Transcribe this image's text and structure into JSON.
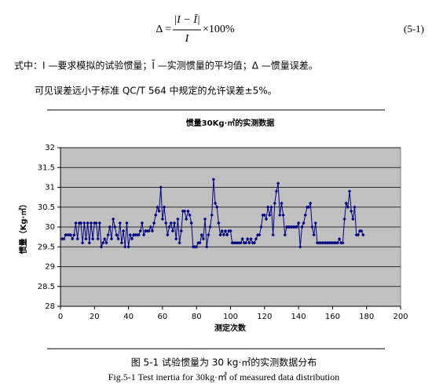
{
  "formula": {
    "lhs": "Δ =",
    "numerator": "|I − Ī|",
    "denominator": "I",
    "factor": "×100%",
    "number": "(5-1)"
  },
  "paragraphs": [
    "式中：I —要求模拟的试验惯量；Ī —实测惯量的平均值；Δ —惯量误差。",
    "可见误差远小于标准 QC/T 564 中规定的允许误差±5%。"
  ],
  "chart_data": {
    "type": "line",
    "title": "惯量30Kg·㎡的实测数据",
    "x_label": "测定次数",
    "y_label": "惯量（Kg·㎡）",
    "color": "#000080",
    "background": "#c0c0c0",
    "grid": true,
    "xlim": [
      0,
      200
    ],
    "xticks": [
      0,
      20,
      40,
      60,
      80,
      100,
      120,
      140,
      160,
      180,
      200
    ],
    "ylim": [
      28,
      32
    ],
    "yticks": [
      28,
      28.5,
      29,
      29.5,
      30,
      30.5,
      31,
      31.5,
      32
    ],
    "x": [
      1,
      2,
      3,
      4,
      5,
      6,
      7,
      8,
      9,
      10,
      11,
      12,
      13,
      14,
      15,
      16,
      17,
      18,
      19,
      20,
      21,
      22,
      23,
      24,
      25,
      26,
      27,
      28,
      29,
      30,
      31,
      32,
      33,
      34,
      35,
      36,
      37,
      38,
      39,
      40,
      41,
      42,
      43,
      44,
      45,
      46,
      47,
      48,
      49,
      50,
      51,
      52,
      53,
      54,
      55,
      56,
      57,
      58,
      59,
      60,
      61,
      62,
      63,
      64,
      65,
      66,
      67,
      68,
      69,
      70,
      71,
      72,
      73,
      74,
      75,
      76,
      77,
      78,
      79,
      80,
      81,
      82,
      83,
      84,
      85,
      86,
      87,
      88,
      89,
      90,
      91,
      92,
      93,
      94,
      95,
      96,
      97,
      98,
      99,
      100,
      101,
      102,
      103,
      104,
      105,
      106,
      107,
      108,
      109,
      110,
      111,
      112,
      113,
      114,
      115,
      116,
      117,
      118,
      119,
      120,
      121,
      122,
      123,
      124,
      125,
      126,
      127,
      128,
      129,
      130,
      131,
      132,
      133,
      134,
      135,
      136,
      137,
      138,
      139,
      140,
      141,
      142,
      143,
      144,
      145,
      146,
      147,
      148,
      149,
      150,
      151,
      152,
      153,
      154,
      155,
      156,
      157,
      158,
      159,
      160,
      161,
      162,
      163,
      164,
      165,
      166,
      167,
      168,
      169,
      170,
      171,
      172,
      173,
      174,
      175,
      176,
      177,
      178
    ],
    "values": [
      29.7,
      29.7,
      29.8,
      29.8,
      29.8,
      29.8,
      29.7,
      29.8,
      30.1,
      29.7,
      30.1,
      30.1,
      29.6,
      30.1,
      29.7,
      30.1,
      29.6,
      30.1,
      29.7,
      30.1,
      30.1,
      29.7,
      30.1,
      29.5,
      29.6,
      29.7,
      29.6,
      29.8,
      30.0,
      29.7,
      30.2,
      30.0,
      29.8,
      29.7,
      30.1,
      29.6,
      29.9,
      29.5,
      30.1,
      29.5,
      29.8,
      29.7,
      29.8,
      29.8,
      29.8,
      29.8,
      29.9,
      30.1,
      29.8,
      29.9,
      29.9,
      29.9,
      30.0,
      29.9,
      30.1,
      30.3,
      30.5,
      30.4,
      31.0,
      30.2,
      30.5,
      30.1,
      29.8,
      30.0,
      30.1,
      29.9,
      30.1,
      29.7,
      30.2,
      29.6,
      29.9,
      30.4,
      30.4,
      30.2,
      30.4,
      30.3,
      30.1,
      29.5,
      29.5,
      29.5,
      29.6,
      29.6,
      29.8,
      29.7,
      30.2,
      29.5,
      29.8,
      30.0,
      30.3,
      31.2,
      30.6,
      30.5,
      30.1,
      29.8,
      29.9,
      29.8,
      29.9,
      29.8,
      29.9,
      29.9,
      29.6,
      29.6,
      29.6,
      29.6,
      29.6,
      29.6,
      29.7,
      29.6,
      29.6,
      29.7,
      29.6,
      29.7,
      29.6,
      29.6,
      29.7,
      29.8,
      29.8,
      30.0,
      30.3,
      30.3,
      30.2,
      30.5,
      30.3,
      30.5,
      29.8,
      30.6,
      30.9,
      31.1,
      30.3,
      30.6,
      30.3,
      29.8,
      30.0,
      30.0,
      30.0,
      30.0,
      30.0,
      30.0,
      30.0,
      30.1,
      29.5,
      30.0,
      30.1,
      30.3,
      30.5,
      30.5,
      30.6,
      30.0,
      29.8,
      30.1,
      29.6,
      29.6,
      29.6,
      29.6,
      29.6,
      29.6,
      29.6,
      29.6,
      29.6,
      29.6,
      29.6,
      29.6,
      29.6,
      29.7,
      29.6,
      29.6,
      30.2,
      30.6,
      30.5,
      30.9,
      30.4,
      30.2,
      30.5,
      29.8,
      29.8,
      29.9,
      29.9,
      29.8
    ]
  },
  "caption": {
    "zh": "图 5-1 试验惯量为 30 kg·㎡的实测数据分布",
    "en": "Fig.5-1 Test inertia for 30kg·㎡ of measured data distribution"
  }
}
